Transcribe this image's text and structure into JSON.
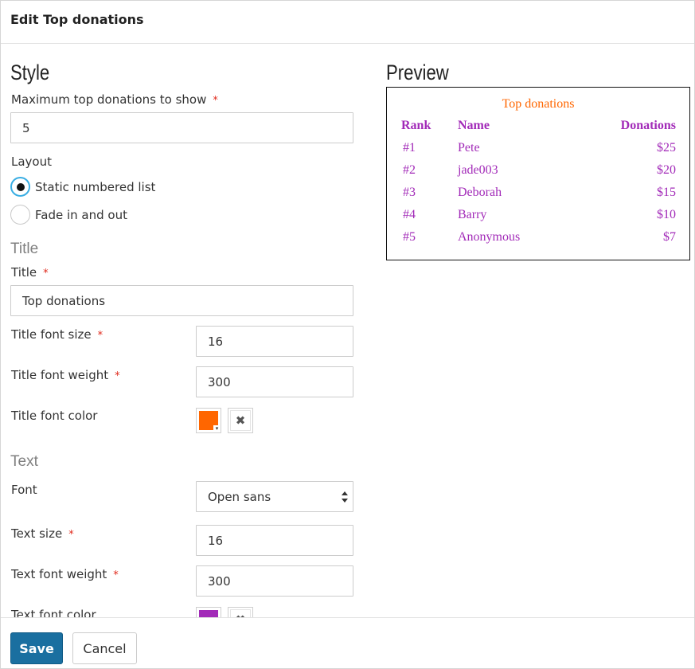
{
  "dialog": {
    "title": "Edit Top donations",
    "save_label": "Save",
    "cancel_label": "Cancel"
  },
  "style_section": {
    "heading": "Style",
    "max_label": "Maximum top donations to show",
    "max_value": "5",
    "layout_label": "Layout",
    "layout_options": [
      {
        "label": "Static numbered list",
        "checked": true
      },
      {
        "label": "Fade in and out",
        "checked": false
      }
    ]
  },
  "title_section": {
    "heading": "Title",
    "title_label": "Title",
    "title_value": "Top donations",
    "font_size_label": "Title font size",
    "font_size_value": "16",
    "font_weight_label": "Title font weight",
    "font_weight_value": "300",
    "font_color_label": "Title font color",
    "font_color": "#ff6600"
  },
  "text_section": {
    "heading": "Text",
    "font_label": "Font",
    "font_value": "Open sans",
    "size_label": "Text size",
    "size_value": "16",
    "weight_label": "Text font weight",
    "weight_value": "300",
    "color_label": "Text font color",
    "font_color": "#a22ab8"
  },
  "preview": {
    "heading": "Preview",
    "title": "Top donations",
    "title_color": "#ff6600",
    "text_color": "#a22ab8",
    "columns": [
      "Rank",
      "Name",
      "Donations"
    ],
    "rows": [
      {
        "rank": "#1",
        "name": "Pete",
        "amount": "$25"
      },
      {
        "rank": "#2",
        "name": "jade003",
        "amount": "$20"
      },
      {
        "rank": "#3",
        "name": "Deborah",
        "amount": "$15"
      },
      {
        "rank": "#4",
        "name": "Barry",
        "amount": "$10"
      },
      {
        "rank": "#5",
        "name": "Anonymous",
        "amount": "$7"
      }
    ]
  },
  "required_mark": "*",
  "clear_glyph": "✖",
  "caret_glyph": "▾"
}
